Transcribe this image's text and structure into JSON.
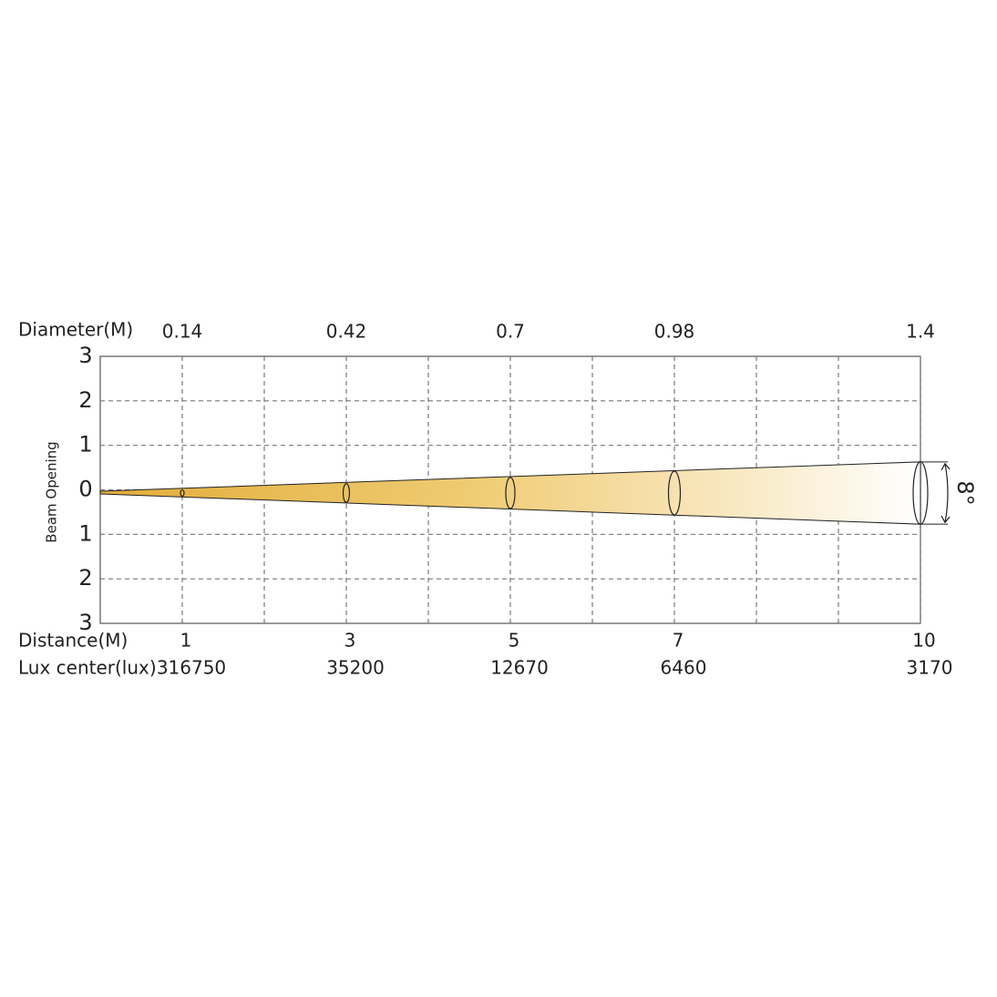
{
  "diameter_row": {
    "label": "Diameter(M)",
    "values": [
      0.14,
      0.42,
      0.7,
      0.98,
      1.4
    ]
  },
  "y_axis": {
    "label": "Beam Opening",
    "ticks": [
      3,
      2,
      1,
      0,
      1,
      2,
      3
    ]
  },
  "distance_row": {
    "label": "Distance(M)",
    "values": [
      1,
      3,
      5,
      7,
      10
    ]
  },
  "lux_row": {
    "label": "Lux center(lux)",
    "values": [
      316750,
      35200,
      12670,
      6460,
      3170
    ]
  },
  "beam_angle": "8°"
}
